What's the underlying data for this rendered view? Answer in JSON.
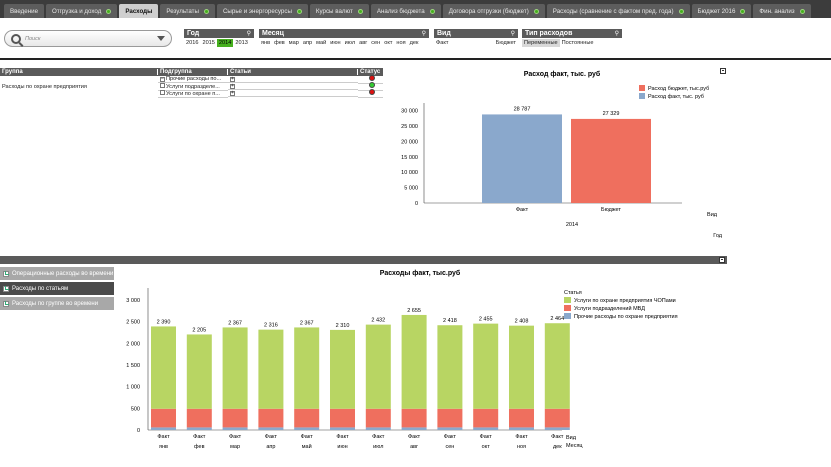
{
  "tabs": [
    {
      "label": "Введение",
      "active": false,
      "dot": false
    },
    {
      "label": "Отгрузка и доход",
      "active": false,
      "dot": true
    },
    {
      "label": "Расходы",
      "active": true,
      "dot": false
    },
    {
      "label": "Результаты",
      "active": false,
      "dot": true
    },
    {
      "label": "Сырье и энергоресурсы",
      "active": false,
      "dot": true
    },
    {
      "label": "Курсы валют",
      "active": false,
      "dot": true
    },
    {
      "label": "Анализ бюджета",
      "active": false,
      "dot": true
    },
    {
      "label": "Договора отгрузки (бюджет)",
      "active": false,
      "dot": true
    },
    {
      "label": "Расходы (сравнение с фактом пред. года)",
      "active": false,
      "dot": true
    },
    {
      "label": "Бюджет 2016",
      "active": false,
      "dot": true
    },
    {
      "label": "Фин. анализ",
      "active": false,
      "dot": true
    }
  ],
  "search": {
    "placeholder": "Поиск"
  },
  "filters": {
    "year": {
      "title": "Год",
      "values": [
        "2016",
        "2015",
        "2014",
        "2013"
      ],
      "selected": "2014"
    },
    "month": {
      "title": "Месяц",
      "values": [
        "янв",
        "фев",
        "мар",
        "апр",
        "май",
        "июн",
        "июл",
        "авг",
        "сен",
        "окт",
        "ноя",
        "дек"
      ]
    },
    "view": {
      "title": "Вид",
      "values": [
        "Факт",
        "Бюджет"
      ]
    },
    "expense_type": {
      "title": "Тип расходов",
      "values": [
        "Переменные",
        "Постоянные"
      ]
    }
  },
  "table": {
    "headers": [
      "Группа",
      "Подгруппа",
      "Статьи",
      "Статус"
    ],
    "group": "Расходы по охране предприятия",
    "rows": [
      {
        "sub": "Прочие расходы  по...",
        "sign": "⊟",
        "status": "red"
      },
      {
        "sub": "Услуги подразделе...",
        "sign": "⊞",
        "status": "green"
      },
      {
        "sub": "Услуги по охране п...",
        "sign": "⊞",
        "status": "red"
      }
    ]
  },
  "chart_data": [
    {
      "type": "bar",
      "title": "Расход факт, тыс. руб",
      "categories": [
        "Факт",
        "Бюджет"
      ],
      "values": [
        28787,
        27329
      ],
      "value_labels": [
        "28 787",
        "27 329"
      ],
      "group_label": "2014",
      "axis_labels": [
        "Вид",
        "Год"
      ],
      "yticks": [
        "30 000",
        "25 000",
        "20 000",
        "15 000",
        "10 000",
        "5 000",
        "0"
      ],
      "ylim": [
        0,
        32500
      ],
      "legend": [
        {
          "name": "Расход бюджет, тыс.руб",
          "color": "#ef6f5e"
        },
        {
          "name": "Расход факт, тыс. руб",
          "color": "#8aa8cc"
        }
      ],
      "colors": [
        "#8aa8cc",
        "#ef6f5e"
      ]
    },
    {
      "type": "bar",
      "stacked": true,
      "title": "Расходы факт, тыс.руб",
      "categories": [
        "янв",
        "фев",
        "мар",
        "апр",
        "май",
        "июн",
        "июл",
        "авг",
        "сен",
        "окт",
        "ноя",
        "дек"
      ],
      "row_label": "Факт",
      "axis_labels": [
        "Вид",
        "Месяц"
      ],
      "legend_title": "Статья",
      "totals": [
        2390,
        2205,
        2367,
        2316,
        2367,
        2310,
        2432,
        2655,
        2418,
        2455,
        2408,
        2464
      ],
      "total_labels": [
        "2 390",
        "2 205",
        "2 367",
        "2 316",
        "2 367",
        "2 310",
        "2 432",
        "2 655",
        "2 418",
        "2 455",
        "2 408",
        "2 464"
      ],
      "series": [
        {
          "name": "Прочие расходы  по охране предприятия",
          "color": "#8aa8cc",
          "values": [
            60,
            60,
            60,
            60,
            60,
            60,
            60,
            60,
            60,
            60,
            60,
            60
          ]
        },
        {
          "name": "Услуги подразделений МВД",
          "color": "#ef6f5e",
          "values": [
            430,
            430,
            430,
            430,
            430,
            430,
            430,
            430,
            430,
            430,
            430,
            430
          ]
        },
        {
          "name": "Услуги по охране предприятия ЧОПами",
          "color": "#b8d563",
          "values": [
            1900,
            1715,
            1877,
            1826,
            1877,
            1820,
            1942,
            2165,
            1928,
            1965,
            1918,
            1974
          ]
        }
      ],
      "legend_order": [
        2,
        1,
        0
      ],
      "yticks": [
        "3 000",
        "2 500",
        "2 000",
        "1 500",
        "1 000",
        "500",
        "0"
      ],
      "ylim": [
        0,
        3000
      ]
    }
  ],
  "side_buttons": [
    {
      "label": "Операционные расходы во времени",
      "active": false
    },
    {
      "label": "Расходы по статьям",
      "active": true
    },
    {
      "label": "Расходы по группе во времени",
      "active": false
    }
  ]
}
